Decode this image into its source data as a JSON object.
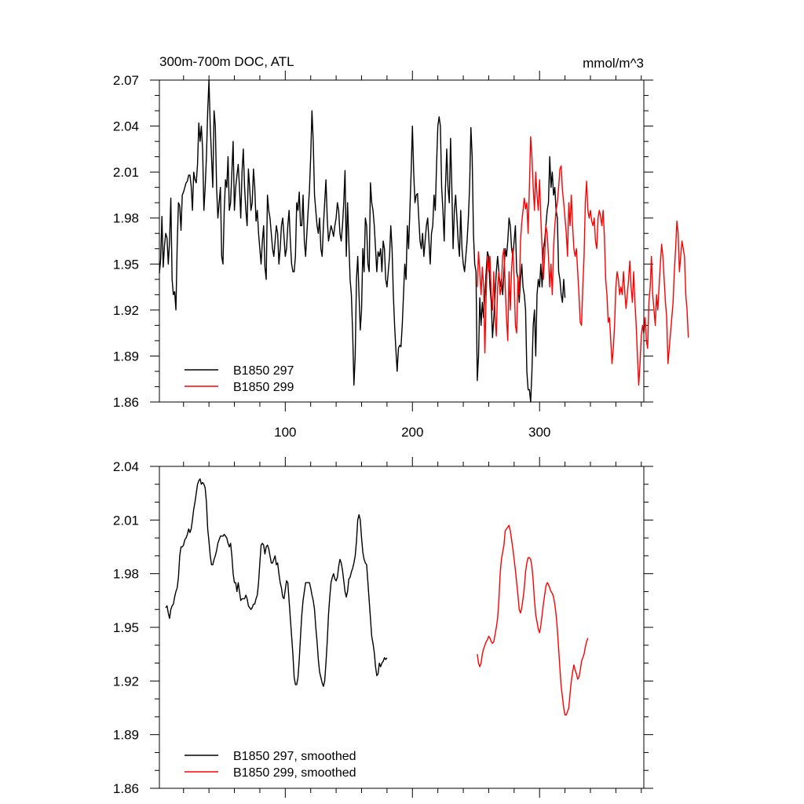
{
  "chart_data": [
    {
      "type": "line",
      "title": "300m-700m DOC, ATL",
      "units": "mmol/m^3",
      "xlim": [
        1,
        382
      ],
      "ylim": [
        1.86,
        2.07
      ],
      "yticks": [
        "2.07",
        "2.04",
        "2.01",
        "1.98",
        "1.95",
        "1.92",
        "1.89",
        "1.86"
      ],
      "xticks": [
        "100",
        "200",
        "300"
      ],
      "legend_position": "bottom-left",
      "series": [
        {
          "name": "B1850 297",
          "color": "#000000",
          "x_start": 1,
          "values": [
            1.944,
            1.953,
            1.981,
            1.948,
            1.962,
            1.97,
            1.967,
            1.95,
            1.965,
            1.993,
            1.94,
            1.93,
            1.932,
            1.92,
            1.962,
            1.99,
            1.988,
            1.972,
            1.995,
            1.997,
            2.0,
            2.003,
            2.004,
            2.008,
            2.008,
            2.001,
            1.985,
            2.01,
            2.005,
            2.003,
            2.015,
            2.042,
            2.03,
            2.04,
            2.025,
            1.985,
            2.0,
            2.02,
            2.05,
            2.07,
            2.04,
            2.02,
            2.0,
            2.05,
            2.04,
            2.0,
            1.98,
            1.99,
            2.0,
            1.955,
            1.95,
            1.985,
            2.005,
            2.0,
            2.02,
            1.985,
            1.99,
            2.01,
            2.03,
            1.985,
            2.0,
            2.008,
            2.015,
            2.0,
            1.98,
            2.01,
            2.025,
            2.0,
            1.985,
            1.975,
            2.012,
            2.0,
            1.985,
            1.99,
            2.012,
            2.0,
            1.978,
            1.985,
            1.97,
            1.96,
            1.95,
            1.965,
            1.975,
            1.948,
            1.94,
            1.995,
            1.985,
            1.98,
            1.97,
            1.96,
            1.955,
            1.965,
            1.975,
            1.97,
            1.95,
            1.96,
            1.975,
            1.98,
            1.968,
            1.955,
            1.96,
            1.975,
            1.985,
            1.965,
            1.95,
            1.945,
            1.945,
            1.955,
            1.99,
            1.985,
            1.997,
            1.975,
            1.975,
            1.995,
            1.965,
            1.955,
            1.97,
            1.985,
            1.998,
            2.02,
            2.05,
            2.03,
            1.995,
            1.985,
            1.975,
            1.97,
            1.98,
            1.96,
            1.955,
            1.975,
            1.99,
            2.005,
            1.98,
            1.965,
            1.97,
            1.975,
            1.972,
            1.968,
            1.975,
            1.98,
            1.99,
            1.985,
            1.97,
            1.965,
            1.975,
            1.99,
            2.011,
            1.955,
            1.99,
            1.965,
            1.94,
            1.93,
            1.905,
            1.871,
            1.89,
            1.94,
            1.955,
            1.93,
            1.907,
            1.92,
            1.96,
            1.945,
            1.98,
            1.975,
            1.95,
            1.945,
            2.003,
            1.99,
            1.985,
            1.975,
            1.96,
            1.945,
            1.958,
            1.955,
            1.96,
            1.945,
            1.965,
            1.96,
            1.94,
            1.935,
            1.945,
            1.955,
            1.975,
            1.96,
            1.93,
            1.91,
            1.894,
            1.88,
            1.895,
            1.897,
            1.896,
            1.91,
            1.93,
            1.95,
            1.94,
            1.975,
            1.96,
            1.985,
            2.01,
            2.04,
            2.01,
            1.99,
            1.995,
            1.996,
            1.98,
            1.965,
            1.96,
            1.97,
            1.955,
            1.965,
            1.975,
            1.98,
            1.965,
            1.95,
            1.97,
            1.975,
            1.995,
            1.985,
            2.015,
            2.04,
            2.046,
            2.04,
            2.0,
            1.985,
            1.965,
            2.0,
            2.025,
            2.0,
            1.99,
            2.032,
            2.0,
            1.96,
            1.985,
            1.995,
            1.98,
            1.965,
            1.955,
            1.985,
            1.96,
            1.95,
            1.945,
            1.955,
            1.965,
            1.98,
            2.001,
            2.039,
            2.02,
            1.97,
            1.95,
            1.945,
            1.874,
            1.89,
            1.928,
            1.91,
            1.925,
            1.915,
            1.93,
            1.945,
            1.958,
            1.955,
            1.935,
            1.925,
            1.902,
            1.915,
            1.93,
            1.945,
            1.955,
            1.945,
            1.935,
            1.94,
            1.93,
            1.945,
            1.96,
            1.955,
            1.965,
            1.98,
            1.975,
            1.96,
            1.955,
            1.965,
            1.975,
            1.945,
            1.94,
            1.925,
            1.94,
            1.95,
            1.935,
            1.93,
            1.92,
            1.88,
            1.868,
            1.868,
            1.86,
            1.88,
            1.91,
            1.92,
            1.89,
            1.93,
            1.94,
            1.935,
            1.95,
            1.935,
            1.96,
            1.965,
            1.975,
            1.985,
            1.99,
            2.02,
            2.0,
            2.01,
            1.995,
            2.0,
            1.985,
            1.98,
            1.945,
            1.94,
            1.93,
            1.925,
            1.94,
            1.928
          ]
        },
        {
          "name": "B1850 299",
          "color": "#ff0000",
          "x_start": 251,
          "values": [
            1.935,
            1.958,
            1.945,
            1.93,
            1.948,
            1.935,
            1.892,
            1.93,
            1.955,
            1.945,
            1.955,
            1.93,
            1.92,
            1.945,
            1.915,
            1.903,
            1.935,
            1.945,
            1.93,
            1.935,
            1.955,
            1.96,
            1.935,
            1.915,
            1.9,
            1.945,
            1.92,
            1.947,
            1.96,
            1.94,
            1.91,
            1.905,
            1.942,
            1.93,
            1.965,
            1.977,
            1.985,
            1.993,
            1.986,
            1.99,
            1.97,
            2.0,
            2.033,
            2.02,
            2.0,
            1.985,
            2.01,
            1.995,
            1.985,
            2.005,
            1.98,
            1.96,
            1.94,
            1.955,
            1.975,
            1.97,
            1.955,
            1.935,
            1.95,
            1.93,
            1.96,
            1.975,
            1.985,
            1.99,
            2.0,
            2.012,
            2.014,
            1.998,
            1.99,
            1.98,
            1.97,
            1.955,
            1.99,
            1.975,
            1.995,
            1.975,
            1.96,
            1.955,
            1.96,
            1.945,
            1.93,
            1.912,
            1.91,
            1.935,
            1.955,
            1.99,
            2.004,
            1.985,
            1.98,
            1.985,
            1.978,
            1.975,
            1.98,
            1.965,
            1.96,
            1.98,
            1.985,
            1.981,
            1.975,
            1.985,
            1.968,
            1.94,
            1.93,
            1.912,
            1.915,
            1.9,
            1.885,
            1.895,
            1.91,
            1.935,
            1.945,
            1.94,
            1.93,
            1.935,
            1.93,
            1.945,
            1.932,
            1.921,
            1.93,
            1.94,
            1.952,
            1.935,
            1.925,
            1.945,
            1.925,
            1.91,
            1.89,
            1.871,
            1.885,
            1.903,
            1.91,
            1.905,
            1.915,
            1.9,
            1.895,
            1.925,
            1.935,
            1.955,
            1.93,
            1.92,
            1.91,
            1.93,
            1.92,
            1.935,
            1.95,
            1.963,
            1.955,
            1.94,
            1.925,
            1.915,
            1.885,
            1.895,
            1.905,
            1.915,
            1.925,
            1.945,
            1.96,
            1.978,
            1.97,
            1.945,
            1.955,
            1.965,
            1.96,
            1.955,
            1.93,
            1.92,
            1.902
          ]
        }
      ]
    },
    {
      "type": "line",
      "xlim": [
        1,
        382
      ],
      "ylim": [
        1.86,
        2.04
      ],
      "yticks": [
        "2.04",
        "2.01",
        "1.98",
        "1.95",
        "1.92",
        "1.89",
        "1.86"
      ],
      "legend_position": "bottom-left",
      "series": [
        {
          "name": "B1850 297, smoothed",
          "color": "#000000",
          "x_start": 6,
          "values": [
            1.961,
            1.962,
            1.958,
            1.955,
            1.96,
            1.962,
            1.963,
            1.967,
            1.97,
            1.972,
            1.978,
            1.99,
            1.995,
            1.995,
            1.996,
            1.999,
            2.0,
            2.002,
            2.005,
            2.003,
            2.005,
            2.01,
            2.016,
            2.02,
            2.025,
            2.03,
            2.032,
            2.033,
            2.03,
            2.031,
            2.03,
            2.028,
            2.02,
            2.005,
            1.998,
            1.99,
            1.985,
            1.985,
            1.988,
            1.99,
            1.993,
            1.997,
            1.999,
            2.001,
            2.001,
            2.001,
            2.002,
            2.001,
            2.0,
            1.997,
            1.995,
            1.997,
            1.99,
            1.98,
            1.975,
            1.975,
            1.97,
            1.975,
            1.97,
            1.965,
            1.966,
            1.966,
            1.966,
            1.968,
            1.966,
            1.962,
            1.961,
            1.96,
            1.961,
            1.963,
            1.963,
            1.966,
            1.968,
            1.975,
            1.986,
            1.996,
            1.997,
            1.996,
            1.991,
            1.995,
            1.996,
            1.994,
            1.99,
            1.986,
            1.986,
            1.988,
            1.99,
            1.985,
            1.986,
            1.98,
            1.975,
            1.972,
            1.967,
            1.966,
            1.971,
            1.976,
            1.975,
            1.965,
            1.955,
            1.945,
            1.935,
            1.922,
            1.918,
            1.918,
            1.922,
            1.932,
            1.945,
            1.957,
            1.965,
            1.97,
            1.975,
            1.975,
            1.975,
            1.975,
            1.972,
            1.968,
            1.965,
            1.96,
            1.95,
            1.942,
            1.932,
            1.925,
            1.922,
            1.919,
            1.917,
            1.92,
            1.93,
            1.942,
            1.957,
            1.967,
            1.975,
            1.978,
            1.98,
            1.977,
            1.976,
            1.978,
            1.984,
            1.988,
            1.986,
            1.982,
            1.976,
            1.97,
            1.967,
            1.97,
            1.977,
            1.978,
            1.981,
            1.983,
            1.986,
            1.99,
            1.998,
            2.01,
            2.013,
            2.01,
            2.0,
            1.992,
            1.988,
            1.986,
            1.985,
            1.975,
            1.965,
            1.955,
            1.945,
            1.941,
            1.936,
            1.928,
            1.923,
            1.924,
            1.93,
            1.928,
            1.93,
            1.931,
            1.933,
            1.932,
            1.933
          ]
        },
        {
          "name": "B1850 299, smoothed",
          "color": "#ff0000",
          "x_start": 251,
          "values": [
            1.935,
            1.93,
            1.928,
            1.93,
            1.935,
            1.938,
            1.94,
            1.942,
            1.943,
            1.945,
            1.944,
            1.942,
            1.941,
            1.942,
            1.946,
            1.95,
            1.955,
            1.965,
            1.98,
            1.988,
            1.992,
            1.996,
            2.004,
            2.005,
            2.006,
            2.007,
            2.004,
            1.999,
            1.994,
            1.988,
            1.982,
            1.975,
            1.968,
            1.96,
            1.958,
            1.961,
            1.966,
            1.972,
            1.981,
            1.986,
            1.989,
            1.989,
            1.988,
            1.984,
            1.976,
            1.965,
            1.957,
            1.953,
            1.949,
            1.947,
            1.951,
            1.957,
            1.963,
            1.968,
            1.973,
            1.975,
            1.974,
            1.972,
            1.97,
            1.969,
            1.967,
            1.963,
            1.957,
            1.949,
            1.938,
            1.927,
            1.917,
            1.911,
            1.905,
            1.901,
            1.901,
            1.903,
            1.905,
            1.913,
            1.92,
            1.925,
            1.929,
            1.926,
            1.924,
            1.921,
            1.922,
            1.926,
            1.931,
            1.933,
            1.935,
            1.939,
            1.942,
            1.944
          ]
        }
      ]
    }
  ]
}
